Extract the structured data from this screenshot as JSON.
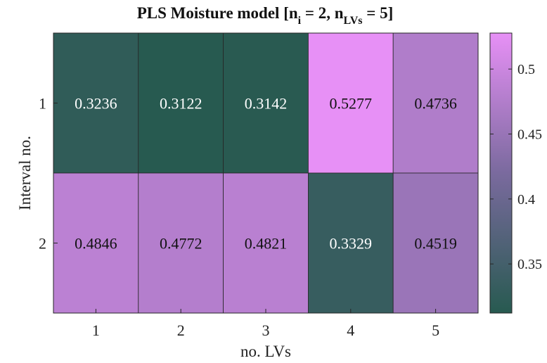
{
  "chart_data": {
    "type": "heatmap",
    "title_parts": [
      "PLS Moisture model [n",
      "i",
      " = 2, n",
      "LVs",
      " = 5]"
    ],
    "xlabel": "no. LVs",
    "ylabel": "Interval no.",
    "x_categories": [
      "1",
      "2",
      "3",
      "4",
      "5"
    ],
    "y_categories": [
      "1",
      "2"
    ],
    "values": [
      [
        0.3236,
        0.3122,
        0.3142,
        0.5277,
        0.4736
      ],
      [
        0.4846,
        0.4772,
        0.4821,
        0.3329,
        0.4519
      ]
    ],
    "value_labels": [
      [
        "0.3236",
        "0.3122",
        "0.3142",
        "0.5277",
        "0.4736"
      ],
      [
        "0.4846",
        "0.4772",
        "0.4821",
        "0.3329",
        "0.4519"
      ]
    ],
    "color_range": [
      0.3122,
      0.5277
    ],
    "colorbar_ticks": [
      0.35,
      0.4,
      0.45,
      0.5
    ],
    "colorbar_tick_labels": [
      "0.35",
      "0.4",
      "0.45",
      "0.5"
    ],
    "colormap": {
      "low": "#275a50",
      "high": "#e790f6"
    }
  }
}
